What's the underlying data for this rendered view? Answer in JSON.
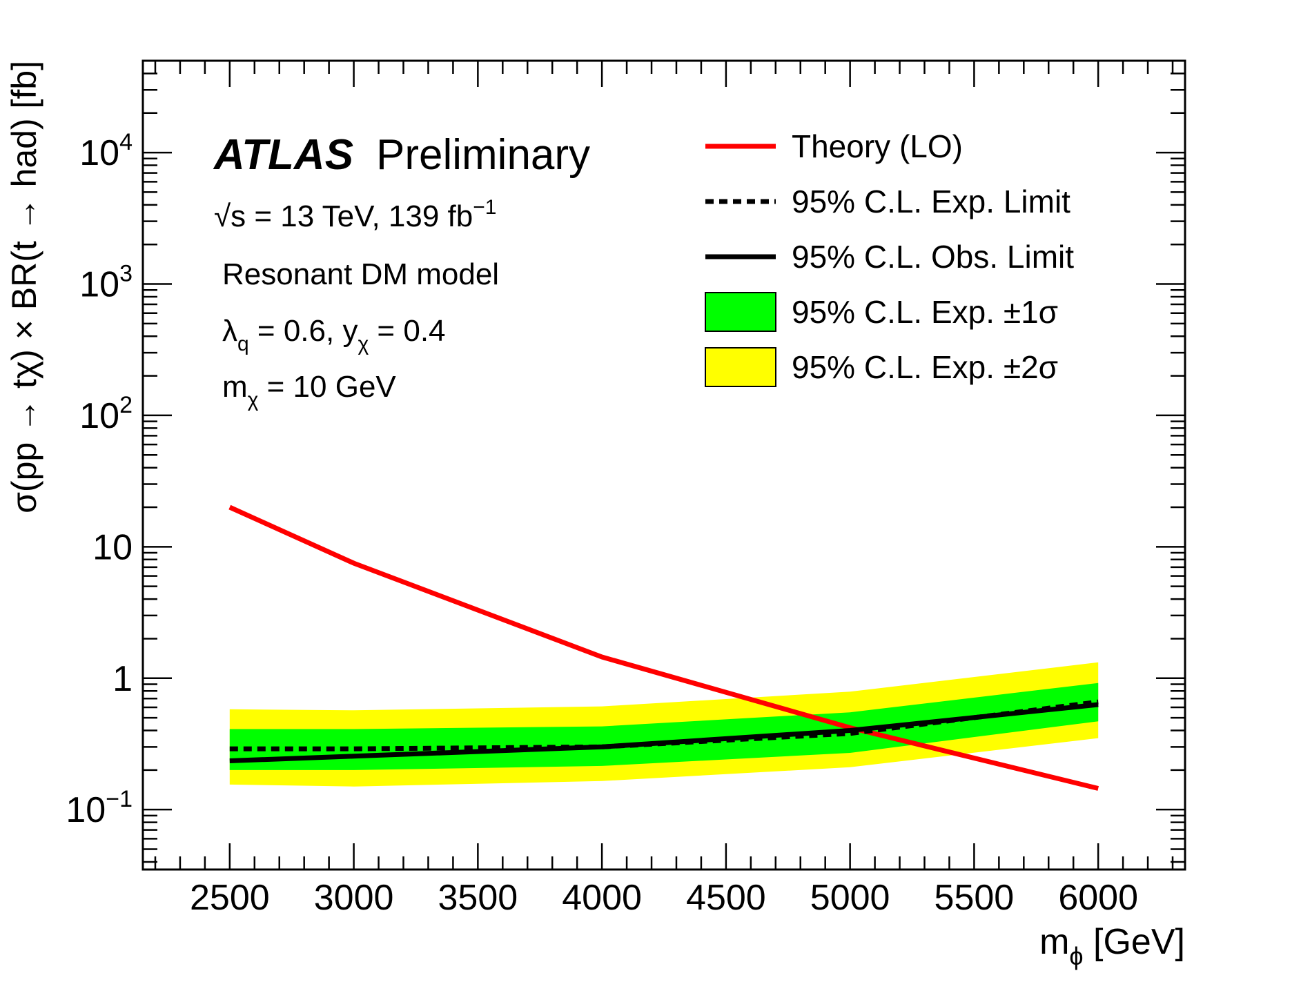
{
  "chart_data": {
    "type": "line",
    "experiment": "ATLAS",
    "status": "Preliminary",
    "info_lines": {
      "energy": "√s = 13 TeV, 139 fb",
      "energy_sup": "−1",
      "model": "Resonant DM model",
      "couplings": [
        {
          "base": "λ",
          "sub": "q",
          "rest": " = 0.6, y"
        },
        {
          "base": "",
          "sub": "χ",
          "rest": " = 0.4"
        }
      ],
      "mass": {
        "base": "m",
        "sub": "χ",
        "rest": " = 10 GeV"
      }
    },
    "xlabel": {
      "base": "m",
      "sub": "ϕ",
      "rest": " [GeV]"
    },
    "ylabel": "σ(pp → tχ) × BR(t → had) [fb]",
    "xlim": [
      2150,
      6350
    ],
    "ylim": [
      0.035,
      50000
    ],
    "yscale": "log",
    "x_ticks": [
      2500,
      3000,
      3500,
      4000,
      4500,
      5000,
      5500,
      6000
    ],
    "x_tick_labels": [
      "2500",
      "3000",
      "3500",
      "4000",
      "4500",
      "5000",
      "5500",
      "6000"
    ],
    "y_ticks": [
      {
        "value": 0.1,
        "base": "10",
        "sup": "−1"
      },
      {
        "value": 1,
        "base": "1",
        "sup": ""
      },
      {
        "value": 10,
        "base": "10",
        "sup": ""
      },
      {
        "value": 100,
        "base": "10",
        "sup": "2"
      },
      {
        "value": 1000,
        "base": "10",
        "sup": "3"
      },
      {
        "value": 10000,
        "base": "10",
        "sup": "4"
      }
    ],
    "x": [
      2500,
      3000,
      4000,
      5000,
      6000
    ],
    "series": [
      {
        "name": "Theory (LO)",
        "kind": "line",
        "color": "#ff0000",
        "values": [
          20,
          7.5,
          1.45,
          0.42,
          0.145
        ]
      },
      {
        "name": "95% C.L. Exp. Limit",
        "kind": "dashed",
        "color": "#000000",
        "values": [
          0.29,
          0.29,
          0.3,
          0.38,
          0.66
        ]
      },
      {
        "name": "95% C.L. Obs. Limit",
        "kind": "line",
        "color": "#000000",
        "values": [
          0.235,
          0.255,
          0.3,
          0.4,
          0.63
        ]
      },
      {
        "name": "95% C.L. Exp. ±1σ",
        "kind": "band",
        "color": "#00ff00",
        "low": [
          0.2,
          0.2,
          0.215,
          0.27,
          0.47
        ],
        "high": [
          0.41,
          0.41,
          0.43,
          0.55,
          0.92
        ]
      },
      {
        "name": "95% C.L. Exp. ±2σ",
        "kind": "band",
        "color": "#ffff00",
        "low": [
          0.155,
          0.15,
          0.165,
          0.21,
          0.35
        ],
        "high": [
          0.58,
          0.57,
          0.61,
          0.79,
          1.32
        ]
      }
    ],
    "legend_position": "top-right",
    "grid": false
  }
}
